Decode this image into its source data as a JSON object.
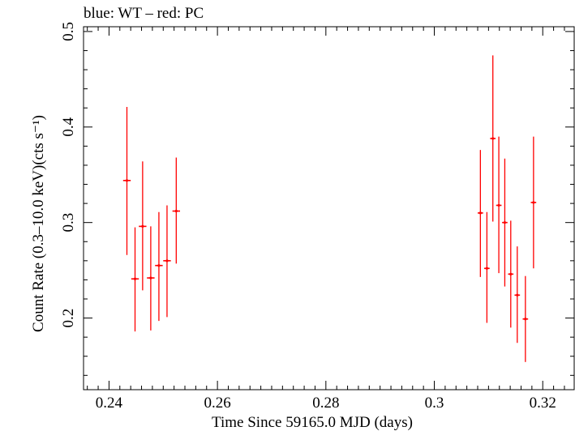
{
  "chart_data": {
    "type": "scatter",
    "title": "blue: WT – red: PC",
    "xlabel": "Time Since 59165.0 MJD (days)",
    "ylabel": "Count Rate (0.3–10.0 keV)(cts s⁻¹)",
    "xlim": [
      0.2353,
      0.3258
    ],
    "ylim": [
      0.125,
      0.505
    ],
    "x_ticks": [
      0.24,
      0.26,
      0.28,
      0.3,
      0.32
    ],
    "x_tick_labels": [
      "0.24",
      "0.26",
      "0.28",
      "0.3",
      "0.32"
    ],
    "y_ticks": [
      0.2,
      0.3,
      0.4,
      0.5
    ],
    "y_tick_labels": [
      "0.2",
      "0.3",
      "0.4",
      "0.5"
    ],
    "x_minor_step": 0.002,
    "y_minor_step": 0.02,
    "grid": false,
    "series": [
      {
        "name": "PC",
        "color": "#ff0000",
        "points": [
          {
            "x": 0.2433,
            "xerr": 0.0007,
            "y": 0.344,
            "yerr_low": 0.078,
            "yerr_high": 0.077
          },
          {
            "x": 0.2448,
            "xerr": 0.0007,
            "y": 0.241,
            "yerr_low": 0.055,
            "yerr_high": 0.054
          },
          {
            "x": 0.2462,
            "xerr": 0.0007,
            "y": 0.296,
            "yerr_low": 0.067,
            "yerr_high": 0.068
          },
          {
            "x": 0.2477,
            "xerr": 0.0007,
            "y": 0.242,
            "yerr_low": 0.055,
            "yerr_high": 0.054
          },
          {
            "x": 0.2492,
            "xerr": 0.0007,
            "y": 0.255,
            "yerr_low": 0.058,
            "yerr_high": 0.056
          },
          {
            "x": 0.2507,
            "xerr": 0.0007,
            "y": 0.26,
            "yerr_low": 0.059,
            "yerr_high": 0.058
          },
          {
            "x": 0.2524,
            "xerr": 0.0007,
            "y": 0.312,
            "yerr_low": 0.055,
            "yerr_high": 0.056
          },
          {
            "x": 0.3085,
            "xerr": 0.0005,
            "y": 0.31,
            "yerr_low": 0.067,
            "yerr_high": 0.066
          },
          {
            "x": 0.3097,
            "xerr": 0.0005,
            "y": 0.252,
            "yerr_low": 0.057,
            "yerr_high": 0.059
          },
          {
            "x": 0.3108,
            "xerr": 0.0005,
            "y": 0.388,
            "yerr_low": 0.087,
            "yerr_high": 0.087
          },
          {
            "x": 0.3119,
            "xerr": 0.0005,
            "y": 0.318,
            "yerr_low": 0.071,
            "yerr_high": 0.072
          },
          {
            "x": 0.313,
            "xerr": 0.0005,
            "y": 0.3,
            "yerr_low": 0.067,
            "yerr_high": 0.067
          },
          {
            "x": 0.3141,
            "xerr": 0.0005,
            "y": 0.246,
            "yerr_low": 0.056,
            "yerr_high": 0.056
          },
          {
            "x": 0.3153,
            "xerr": 0.0005,
            "y": 0.224,
            "yerr_low": 0.05,
            "yerr_high": 0.051
          },
          {
            "x": 0.3168,
            "xerr": 0.0005,
            "y": 0.199,
            "yerr_low": 0.045,
            "yerr_high": 0.045
          },
          {
            "x": 0.3183,
            "xerr": 0.0005,
            "y": 0.321,
            "yerr_low": 0.069,
            "yerr_high": 0.069
          }
        ]
      }
    ]
  }
}
